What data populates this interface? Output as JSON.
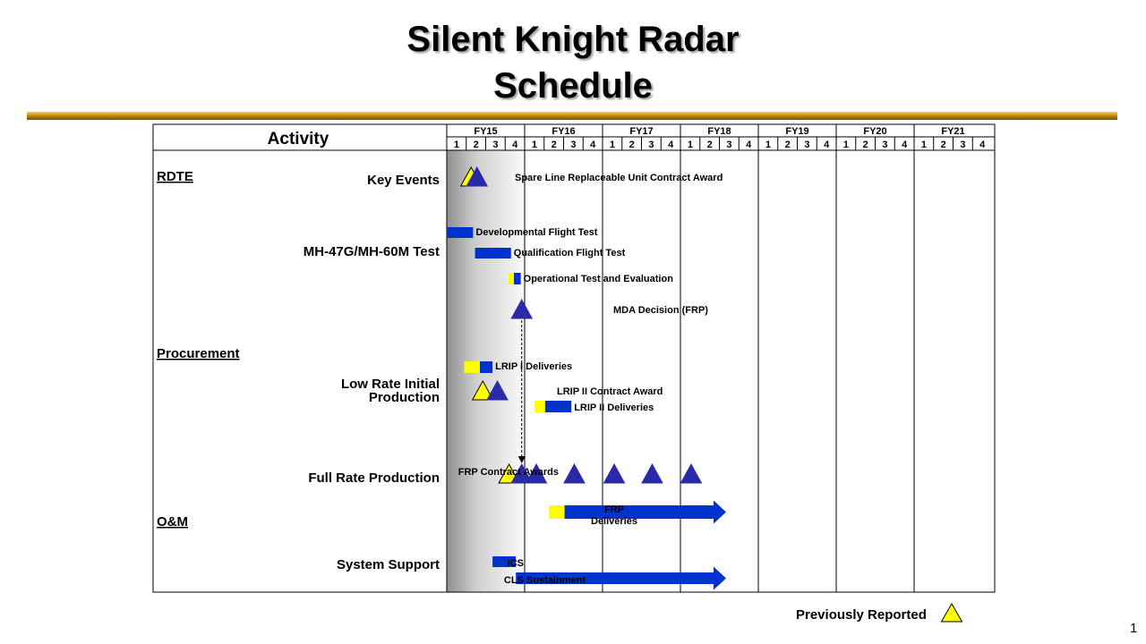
{
  "slide": {
    "title_line1": "Silent Knight Radar",
    "title_line2": "Schedule",
    "page_number": "1",
    "legend_label": "Previously Reported"
  },
  "chart_data": {
    "type": "gantt",
    "column_header": "Activity",
    "fiscal_years": [
      "FY15",
      "FY16",
      "FY17",
      "FY18",
      "FY19",
      "FY20",
      "FY21"
    ],
    "quarters": [
      "1",
      "2",
      "3",
      "4"
    ],
    "x_axis_unit": "fiscal quarter index (FY15 Q1 start = 0, FY21 Q4 end = 28)",
    "xlim": [
      0,
      28
    ],
    "sections": [
      "RDTE",
      "Procurement",
      "O&M"
    ],
    "row_labels": [
      {
        "text": "Key Events"
      },
      {
        "text": "MH-47G/MH-60M Test"
      },
      {
        "text": "Low Rate Initial\nProduction"
      },
      {
        "text": "Full Rate Production"
      },
      {
        "text": "System Support"
      }
    ],
    "bars": [
      {
        "label": "Developmental Flight Test",
        "prev_start": null,
        "start": 0.0,
        "end": 1.35
      },
      {
        "label": "Qualification Flight Test",
        "prev_start": null,
        "start": 1.45,
        "end": 3.3
      },
      {
        "label": "Operational Test and Evaluation",
        "prev_start": 3.15,
        "start": 3.45,
        "end": 3.8
      },
      {
        "label": "LRIP I Deliveries",
        "prev_start": 0.9,
        "start": 1.7,
        "end": 2.35
      },
      {
        "label": "LRIP II Deliveries",
        "prev_start": 4.5,
        "start": 5.05,
        "end": 6.4
      },
      {
        "label": "FRP\nDeliveries",
        "prev_start": 5.25,
        "start": 6.05,
        "end": 13.7,
        "arrow": true
      },
      {
        "label": "ICS",
        "prev_start": null,
        "start": 2.35,
        "end": 3.55
      },
      {
        "label": "CLS Sustainment",
        "prev_start": null,
        "start": 3.55,
        "end": 13.7,
        "arrow": true
      }
    ],
    "milestones": [
      {
        "label": "Spare Line Replaceable Unit Contract Award",
        "x": 1.55,
        "prev_x": 1.25
      },
      {
        "label": "MDA Decision (FRP)",
        "x": 3.85,
        "prev_x": null
      },
      {
        "label": "LRIP II Contract Award",
        "x": 2.6,
        "prev_x": 1.85
      },
      {
        "label": "FRP Contract Awards",
        "x": [
          3.85,
          4.6,
          6.55,
          8.6,
          10.55,
          12.55
        ],
        "prev_x": 3.2
      }
    ],
    "dependency": {
      "from": "MDA Decision (FRP)",
      "to": "FRP Contract Awards",
      "x": 3.85
    },
    "colors": {
      "current": "#0033cc",
      "previously_reported": "#ffff00",
      "milestone": "#2a2aa8"
    }
  }
}
